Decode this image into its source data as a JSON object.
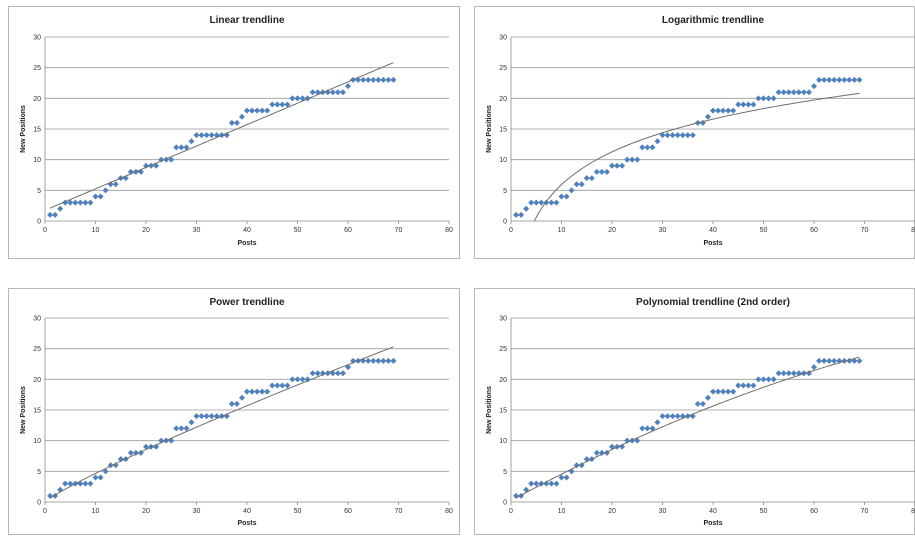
{
  "chart_data": [
    {
      "type": "scatter",
      "title": "Linear trendline",
      "xlabel": "Posts",
      "ylabel": "New Positions",
      "xlim": [
        0,
        80
      ],
      "ylim": [
        0,
        30
      ],
      "xticks": [
        "0",
        "10",
        "20",
        "30",
        "40",
        "50",
        "60",
        "70",
        "80"
      ],
      "yticks": [
        "0",
        "5",
        "10",
        "15",
        "20",
        "25",
        "30"
      ],
      "grid": "horizontal",
      "marker_color": "#4f81bd",
      "trendline": {
        "type": "linear",
        "slope": 0.349,
        "intercept": 1.75,
        "x_range": [
          1,
          69
        ]
      }
    },
    {
      "type": "scatter",
      "title": "Logarithmic trendline",
      "xlabel": "Posts",
      "ylabel": "New Positions",
      "xlim": [
        0,
        80
      ],
      "ylim": [
        0,
        30
      ],
      "xticks": [
        "0",
        "10",
        "20",
        "30",
        "40",
        "50",
        "60",
        "70",
        "80"
      ],
      "yticks": [
        "0",
        "5",
        "10",
        "15",
        "20",
        "25",
        "30"
      ],
      "grid": "horizontal",
      "marker_color": "#4f81bd",
      "trendline": {
        "type": "logarithmic",
        "a": 7.7,
        "b": -11.8,
        "x_range": [
          4.6,
          69
        ]
      }
    },
    {
      "type": "scatter",
      "title": "Power trendline",
      "xlabel": "Posts",
      "ylabel": "New Positions",
      "xlim": [
        0,
        80
      ],
      "ylim": [
        0,
        30
      ],
      "xticks": [
        "0",
        "10",
        "20",
        "30",
        "40",
        "50",
        "60",
        "70",
        "80"
      ],
      "yticks": [
        "0",
        "5",
        "10",
        "15",
        "20",
        "25",
        "30"
      ],
      "grid": "horizontal",
      "marker_color": "#4f81bd",
      "trendline": {
        "type": "power",
        "a": 0.62,
        "b": 0.876,
        "x_range": [
          1,
          69
        ]
      }
    },
    {
      "type": "scatter",
      "title": "Polynomial trendline (2nd order)",
      "xlabel": "Posts",
      "ylabel": "New Positions",
      "xlim": [
        0,
        80
      ],
      "ylim": [
        0,
        30
      ],
      "xticks": [
        "0",
        "10",
        "20",
        "30",
        "40",
        "50",
        "60",
        "70",
        "80"
      ],
      "yticks": [
        "0",
        "5",
        "10",
        "15",
        "20",
        "25",
        "30"
      ],
      "grid": "horizontal",
      "marker_color": "#4f81bd",
      "trendline": {
        "type": "polynomial",
        "c0": 0.2,
        "c1": 0.45,
        "c2": -0.0016,
        "x_range": [
          1,
          69
        ]
      }
    }
  ],
  "series": {
    "x": [
      1,
      2,
      3,
      4,
      5,
      6,
      7,
      8,
      9,
      10,
      11,
      12,
      13,
      14,
      15,
      16,
      17,
      18,
      19,
      20,
      21,
      22,
      23,
      24,
      25,
      26,
      27,
      28,
      29,
      30,
      31,
      32,
      33,
      34,
      35,
      36,
      37,
      38,
      39,
      40,
      41,
      42,
      43,
      44,
      45,
      46,
      47,
      48,
      49,
      50,
      51,
      52,
      53,
      54,
      55,
      56,
      57,
      58,
      59,
      60,
      61,
      62,
      63,
      64,
      65,
      66,
      67,
      68,
      69
    ],
    "y": [
      1,
      1,
      2,
      3,
      3,
      3,
      3,
      3,
      3,
      4,
      4,
      5,
      6,
      6,
      7,
      7,
      8,
      8,
      8,
      9,
      9,
      9,
      10,
      10,
      10,
      12,
      12,
      12,
      13,
      14,
      14,
      14,
      14,
      14,
      14,
      14,
      16,
      16,
      17,
      18,
      18,
      18,
      18,
      18,
      19,
      19,
      19,
      19,
      20,
      20,
      20,
      20,
      21,
      21,
      21,
      21,
      21,
      21,
      21,
      22,
      23,
      23,
      23,
      23,
      23,
      23,
      23,
      23,
      23
    ]
  }
}
